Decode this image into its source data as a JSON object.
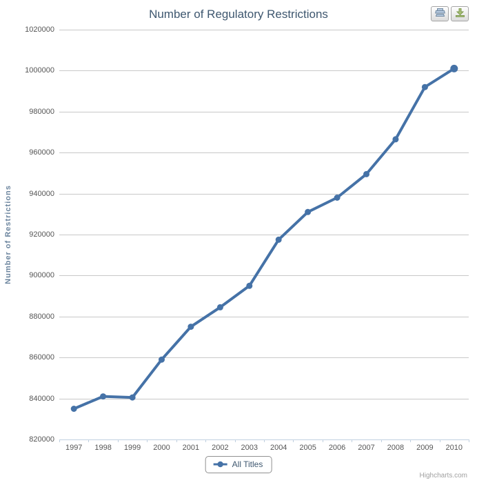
{
  "header": {
    "title": "Number of Regulatory Restrictions"
  },
  "toolbar": {
    "print_icon": "print-icon",
    "download_icon": "download-icon"
  },
  "legend": {
    "label": "All Titles"
  },
  "credits": {
    "label": "Highcharts.com"
  },
  "colors": {
    "series": "#4572A7",
    "grid": "#C8C8C8",
    "axis_line": "#C0D0E0",
    "title": "#3E576F",
    "axis_title": "#6D869F",
    "tick_label": "#555555",
    "legend_border": "#909090",
    "credits": "#A0A0A0",
    "print_icon_fill": "#B5C9DF",
    "print_icon_stroke": "#7088A0",
    "download_icon_fill": "#A8BF77",
    "download_icon_stroke": "#7E9A50"
  },
  "chart_data": {
    "type": "line",
    "title": "Number of Regulatory Restrictions",
    "x": [
      1997,
      1998,
      1999,
      2000,
      2001,
      2002,
      2003,
      2004,
      2005,
      2006,
      2007,
      2008,
      2009,
      2010
    ],
    "series": [
      {
        "name": "All Titles",
        "values": [
          835000,
          841000,
          840500,
          859000,
          875000,
          884500,
          895000,
          917500,
          931000,
          938000,
          949500,
          966500,
          992000,
          1001000
        ]
      }
    ],
    "xlabel": "",
    "ylabel": "Number of Restrictions",
    "ylim": [
      820000,
      1020000
    ],
    "ytick_step": 20000,
    "grid": true,
    "legend_position": "bottom-center"
  }
}
